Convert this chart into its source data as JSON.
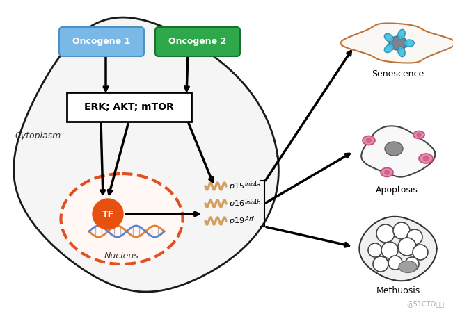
{
  "fig_width": 6.51,
  "fig_height": 4.49,
  "bg_color": "#ffffff",
  "cell_edge_color": "#1a1a1a",
  "nucleus_edge_color": "#e05020",
  "oncogene1_color": "#7ab8e8",
  "oncogene2_color": "#2ea84a",
  "tf_color": "#e85010",
  "wave_color": "#d4a060",
  "label_senescence": "Senescence",
  "label_apoptosis": "Apoptosis",
  "label_methuosis": "Methuosis",
  "label_cytoplasm": "Cytoplasm",
  "label_nucleus": "Nucleus",
  "label_erk": "ERK; AKT; mTOR",
  "label_oncogene1": "Oncogene 1",
  "label_oncogene2": "Oncogene 2",
  "label_tf": "TF",
  "watermark": "@51CTO博客"
}
